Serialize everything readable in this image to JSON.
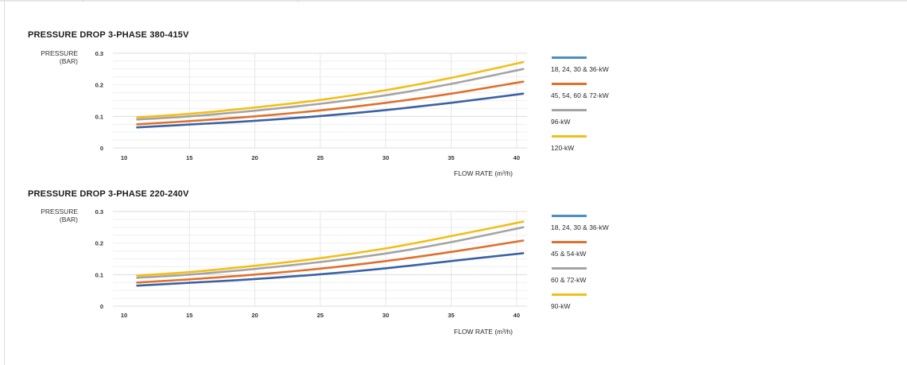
{
  "colors": {
    "series_blue": "#3a62a3",
    "series_orange": "#e0702c",
    "series_gray": "#a4a4a4",
    "series_yellow": "#f2be18",
    "legend_blue": "#4a8fc6",
    "grid": "#e3e3e3"
  },
  "chart_data": [
    {
      "type": "line",
      "title": "PRESSURE DROP 3-PHASE 380-415V",
      "ylabel_lines": [
        "PRESSURE",
        "(BAR)"
      ],
      "xlabel": "FLOW RATE (m³/h)",
      "xlim": [
        10,
        40.8
      ],
      "ylim": [
        0,
        0.3
      ],
      "x_ticks": [
        10,
        15,
        20,
        25,
        30,
        35,
        40
      ],
      "x_tick_labels": [
        "10",
        "15",
        "20",
        "25",
        "30",
        "35",
        "40"
      ],
      "y_ticks": [
        0,
        0.1,
        0.2,
        0.3
      ],
      "y_tick_labels": [
        "0",
        "0.1",
        "0.2",
        "0.3"
      ],
      "grid": true,
      "legend_position": "right",
      "series": [
        {
          "name": "18, 24, 30 & 36-kW",
          "color_key": "series_blue",
          "legend_color_key": "legend_blue",
          "x": [
            11,
            15,
            20,
            25,
            30,
            35,
            40.5
          ],
          "y": [
            0.065,
            0.074,
            0.086,
            0.101,
            0.12,
            0.143,
            0.172
          ]
        },
        {
          "name": "45, 54, 60 & 72-kW",
          "color_key": "series_orange",
          "legend_color_key": "series_orange",
          "x": [
            11,
            15,
            20,
            25,
            30,
            35,
            40.5
          ],
          "y": [
            0.075,
            0.085,
            0.1,
            0.119,
            0.143,
            0.172,
            0.21
          ]
        },
        {
          "name": "96-kW",
          "color_key": "series_gray",
          "legend_color_key": "series_gray",
          "x": [
            11,
            15,
            20,
            25,
            30,
            35,
            40.5
          ],
          "y": [
            0.09,
            0.1,
            0.118,
            0.14,
            0.167,
            0.203,
            0.25
          ]
        },
        {
          "name": "120-kW",
          "color_key": "series_yellow",
          "legend_color_key": "series_yellow",
          "x": [
            11,
            15,
            20,
            25,
            30,
            35,
            40.5
          ],
          "y": [
            0.097,
            0.108,
            0.128,
            0.152,
            0.183,
            0.222,
            0.272
          ]
        }
      ]
    },
    {
      "type": "line",
      "title": "PRESSURE DROP 3-PHASE 220-240V",
      "ylabel_lines": [
        "PRESSURE",
        "(BAR)"
      ],
      "xlabel": "FLOW RATE (m³/h)",
      "xlim": [
        10,
        40.8
      ],
      "ylim": [
        0,
        0.3
      ],
      "x_ticks": [
        10,
        15,
        20,
        25,
        30,
        35,
        40
      ],
      "x_tick_labels": [
        "10",
        "15",
        "20",
        "25",
        "30",
        "35",
        "40"
      ],
      "y_ticks": [
        0,
        0.1,
        0.2,
        0.3
      ],
      "y_tick_labels": [
        "0",
        "0.1",
        "0.2",
        "0.3"
      ],
      "grid": true,
      "legend_position": "right",
      "series": [
        {
          "name": "18, 24, 30 & 36-kW",
          "color_key": "series_blue",
          "legend_color_key": "legend_blue",
          "x": [
            11,
            15,
            20,
            25,
            30,
            35,
            40.5
          ],
          "y": [
            0.065,
            0.074,
            0.086,
            0.101,
            0.12,
            0.143,
            0.168
          ]
        },
        {
          "name": "45 & 54-kW",
          "color_key": "series_orange",
          "legend_color_key": "series_orange",
          "x": [
            11,
            15,
            20,
            25,
            30,
            35,
            40.5
          ],
          "y": [
            0.075,
            0.085,
            0.1,
            0.119,
            0.143,
            0.172,
            0.208
          ]
        },
        {
          "name": "60 & 72-kW",
          "color_key": "series_gray",
          "legend_color_key": "series_gray",
          "x": [
            11,
            15,
            20,
            25,
            30,
            35,
            40.5
          ],
          "y": [
            0.09,
            0.1,
            0.118,
            0.14,
            0.167,
            0.203,
            0.25
          ]
        },
        {
          "name": "90-kW",
          "color_key": "series_yellow",
          "legend_color_key": "series_yellow",
          "x": [
            11,
            15,
            20,
            25,
            30,
            35,
            40.5
          ],
          "y": [
            0.097,
            0.108,
            0.128,
            0.152,
            0.183,
            0.222,
            0.268
          ]
        }
      ]
    }
  ]
}
